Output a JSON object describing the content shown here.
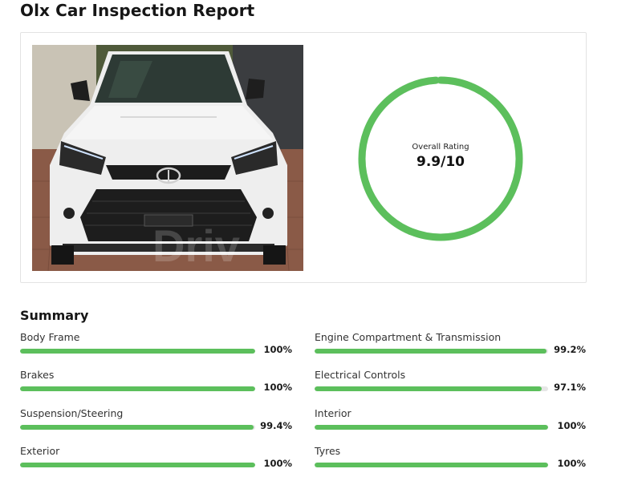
{
  "page_title": "Olx Car Inspection Report",
  "photo_watermark": "Driv",
  "rating": {
    "label": "Overall Rating",
    "value": "9.9/10",
    "score": 9.9,
    "max": 10,
    "color": "#5cbf5c"
  },
  "summary": {
    "title": "Summary",
    "bar_color": "#5cbf5c",
    "track_color": "#e6e6e6",
    "items": [
      {
        "label": "Body Frame",
        "percent_text": "100%",
        "percent": 100
      },
      {
        "label": "Engine Compartment & Transmission",
        "percent_text": "99.2%",
        "percent": 99.2
      },
      {
        "label": "Brakes",
        "percent_text": "100%",
        "percent": 100
      },
      {
        "label": "Electrical Controls",
        "percent_text": "97.1%",
        "percent": 97.1
      },
      {
        "label": "Suspension/Steering",
        "percent_text": "99.4%",
        "percent": 99.4
      },
      {
        "label": "Interior",
        "percent_text": "100%",
        "percent": 100
      },
      {
        "label": "Exterior",
        "percent_text": "100%",
        "percent": 100
      },
      {
        "label": "Tyres",
        "percent_text": "100%",
        "percent": 100
      }
    ]
  }
}
